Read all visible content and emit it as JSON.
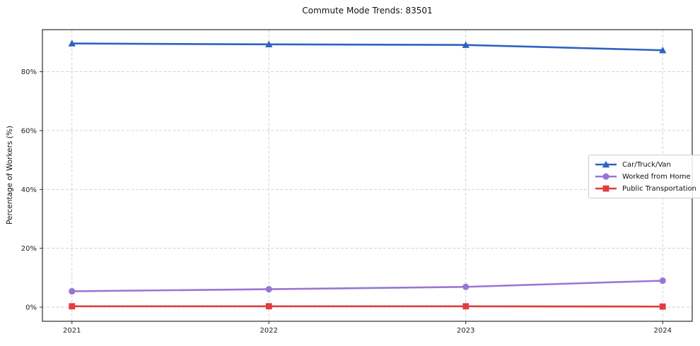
{
  "chart_data": {
    "type": "line",
    "title": "Commute Mode Trends: 83501",
    "xlabel": "",
    "ylabel": "Percentage of Workers (%)",
    "x": [
      2021,
      2022,
      2023,
      2024
    ],
    "xtick_labels": [
      "2021",
      "2022",
      "2023",
      "2024"
    ],
    "xlim": [
      2020.85,
      2024.15
    ],
    "ylim": [
      -4.8,
      94.3
    ],
    "yticks": [
      0,
      20,
      40,
      60,
      80
    ],
    "ytick_labels": [
      "0%",
      "20%",
      "40%",
      "60%",
      "80%"
    ],
    "grid": true,
    "grid_style": "dashed",
    "grid_color": "#cccccc",
    "axis_color": "#1a1a1a",
    "tick_label_color": "#222222",
    "legend_position": "center-right",
    "series": [
      {
        "name": "Car/Truck/Van",
        "color": "#2d63c1",
        "marker": "triangle",
        "values": [
          89.6,
          89.3,
          89.1,
          87.3
        ]
      },
      {
        "name": "Worked from Home",
        "color": "#9877d3",
        "marker": "circle",
        "values": [
          5.4,
          6.1,
          6.9,
          9.0
        ]
      },
      {
        "name": "Public Transportation",
        "color": "#e23c3c",
        "marker": "square",
        "values": [
          0.3,
          0.3,
          0.3,
          0.2
        ]
      }
    ]
  }
}
